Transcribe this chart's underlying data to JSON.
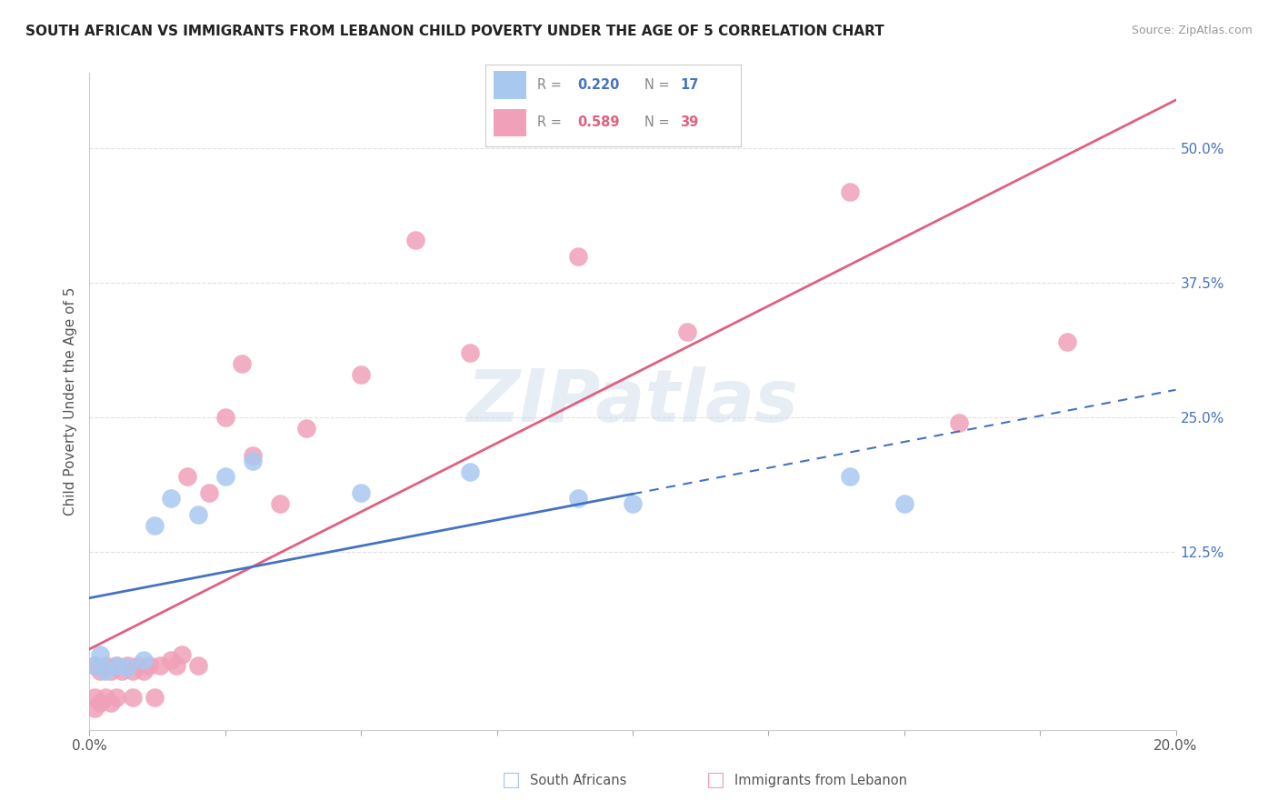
{
  "title": "SOUTH AFRICAN VS IMMIGRANTS FROM LEBANON CHILD POVERTY UNDER THE AGE OF 5 CORRELATION CHART",
  "source": "Source: ZipAtlas.com",
  "ylabel": "Child Poverty Under the Age of 5",
  "x_min": 0.0,
  "x_max": 0.2,
  "y_min": -0.04,
  "y_max": 0.57,
  "x_ticks": [
    0.0,
    0.025,
    0.05,
    0.075,
    0.1,
    0.125,
    0.15,
    0.175,
    0.2
  ],
  "x_tick_labels": [
    "0.0%",
    "",
    "",
    "",
    "",
    "",
    "",
    "",
    "20.0%"
  ],
  "y_ticks": [
    0.125,
    0.25,
    0.375,
    0.5
  ],
  "y_tick_labels": [
    "12.5%",
    "25.0%",
    "37.5%",
    "50.0%"
  ],
  "grid_color": "#e0e0e0",
  "background_color": "#ffffff",
  "south_african_color": "#a8c8f0",
  "lebanon_color": "#f0a0b8",
  "south_african_line_color": "#4472C4",
  "lebanon_line_color": "#e06080",
  "watermark": "ZIPatlas",
  "sa_x": [
    0.001,
    0.002,
    0.003,
    0.005,
    0.007,
    0.01,
    0.012,
    0.015,
    0.02,
    0.025,
    0.03,
    0.05,
    0.07,
    0.09,
    0.1,
    0.14,
    0.15
  ],
  "sa_y": [
    0.02,
    0.03,
    0.015,
    0.02,
    0.018,
    0.025,
    0.15,
    0.175,
    0.16,
    0.195,
    0.21,
    0.18,
    0.2,
    0.175,
    0.17,
    0.195,
    0.17
  ],
  "lb_x": [
    0.001,
    0.001,
    0.001,
    0.002,
    0.002,
    0.003,
    0.003,
    0.004,
    0.004,
    0.005,
    0.005,
    0.006,
    0.007,
    0.008,
    0.008,
    0.009,
    0.01,
    0.011,
    0.012,
    0.013,
    0.015,
    0.016,
    0.017,
    0.018,
    0.02,
    0.022,
    0.025,
    0.028,
    0.03,
    0.035,
    0.04,
    0.05,
    0.06,
    0.07,
    0.09,
    0.11,
    0.14,
    0.16,
    0.18
  ],
  "lb_y": [
    0.02,
    -0.01,
    -0.02,
    0.015,
    -0.015,
    0.02,
    -0.01,
    0.015,
    -0.015,
    0.02,
    -0.01,
    0.015,
    0.02,
    0.015,
    -0.01,
    0.02,
    0.015,
    0.02,
    -0.01,
    0.02,
    0.025,
    0.02,
    0.03,
    0.195,
    0.02,
    0.18,
    0.25,
    0.3,
    0.215,
    0.17,
    0.24,
    0.29,
    0.415,
    0.31,
    0.4,
    0.33,
    0.46,
    0.245,
    0.32
  ]
}
